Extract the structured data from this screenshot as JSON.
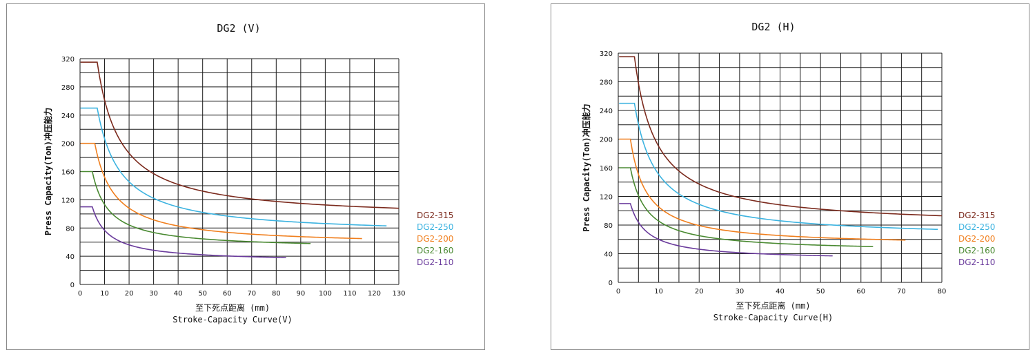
{
  "chart_data": [
    {
      "type": "line",
      "title": "DG2 (V)",
      "xlabel": "至下死点距离 (mm)",
      "xlabel2": "Stroke-Capacity Curve(V)",
      "ylabel": "Press Capacity(Ton)冲压能力",
      "xlim": [
        0,
        130
      ],
      "ylim": [
        0,
        320
      ],
      "xticks": [
        0,
        10,
        20,
        30,
        40,
        50,
        60,
        70,
        80,
        90,
        100,
        110,
        120,
        130
      ],
      "yticks": [
        0,
        40,
        80,
        120,
        160,
        200,
        240,
        280,
        320
      ],
      "xgrid_step": 10,
      "ygrid_step": 20,
      "legend_position": "right",
      "series": [
        {
          "name": "DG2-315",
          "color": "#7b2a1d",
          "flat_value": 315,
          "flat_end": 7,
          "end_x": 130,
          "end_value": 108
        },
        {
          "name": "DG2-250",
          "color": "#3cb3e0",
          "flat_value": 250,
          "flat_end": 7,
          "end_x": 125,
          "end_value": 83
        },
        {
          "name": "DG2-200",
          "color": "#f07f1e",
          "flat_value": 200,
          "flat_end": 6,
          "end_x": 115,
          "end_value": 65
        },
        {
          "name": "DG2-160",
          "color": "#4a8a32",
          "flat_value": 160,
          "flat_end": 5,
          "end_x": 94,
          "end_value": 58
        },
        {
          "name": "DG2-110",
          "color": "#6a3b9c",
          "flat_value": 110,
          "flat_end": 5,
          "end_x": 84,
          "end_value": 38
        }
      ]
    },
    {
      "type": "line",
      "title": "DG2 (H)",
      "xlabel": "至下死点距离 (mm)",
      "xlabel2": "Stroke-Capacity Curve(H)",
      "ylabel": "Press Capacity(Ton)冲压能力",
      "xlim": [
        0,
        80
      ],
      "ylim": [
        0,
        320
      ],
      "xticks": [
        0,
        10,
        20,
        30,
        40,
        50,
        60,
        70,
        80
      ],
      "yticks": [
        0,
        40,
        80,
        120,
        160,
        200,
        240,
        280,
        320
      ],
      "xgrid_step": 5,
      "ygrid_step": 20,
      "legend_position": "right",
      "series": [
        {
          "name": "DG2-315",
          "color": "#7b2a1d",
          "flat_value": 315,
          "flat_end": 4,
          "end_x": 80,
          "end_value": 93
        },
        {
          "name": "DG2-250",
          "color": "#3cb3e0",
          "flat_value": 250,
          "flat_end": 4,
          "end_x": 79,
          "end_value": 74
        },
        {
          "name": "DG2-200",
          "color": "#f07f1e",
          "flat_value": 200,
          "flat_end": 3,
          "end_x": 71,
          "end_value": 59
        },
        {
          "name": "DG2-160",
          "color": "#4a8a32",
          "flat_value": 160,
          "flat_end": 3,
          "end_x": 63,
          "end_value": 50
        },
        {
          "name": "DG2-110",
          "color": "#6a3b9c",
          "flat_value": 110,
          "flat_end": 3,
          "end_x": 53,
          "end_value": 37
        }
      ]
    }
  ]
}
